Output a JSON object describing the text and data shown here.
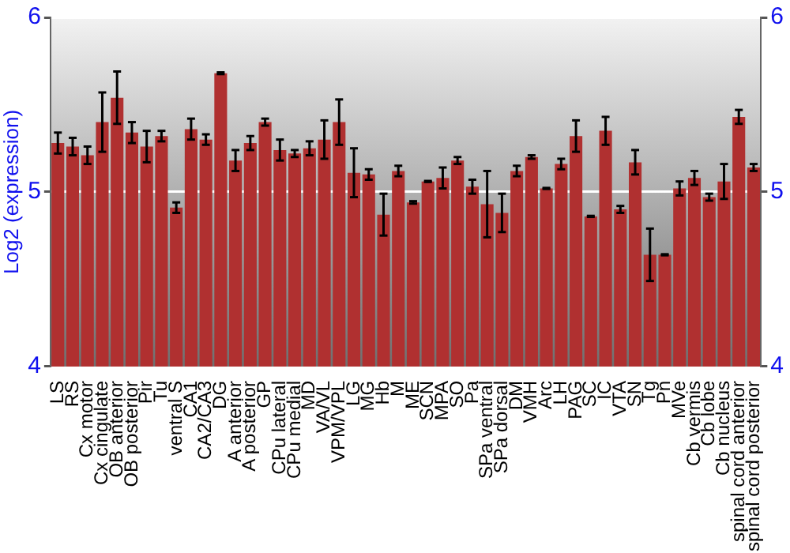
{
  "chart_data": {
    "type": "bar",
    "ylabel": "Log2 (expression)",
    "categories": [
      "LS",
      "RS",
      "Cx motor",
      "Cx cingulate",
      "OB anterior",
      "OB posterior",
      "Pir",
      "Tu",
      "ventral S",
      "CA1",
      "CA2/CA3",
      "DG",
      "A anterior",
      "A posterior",
      "GP",
      "CPu lateral",
      "CPu medial",
      "MD",
      "VA/VL",
      "VPM/VPL",
      "LG",
      "MG",
      "Hb",
      "M",
      "ME",
      "SCN",
      "MPA",
      "SO",
      "Pa",
      "SPa ventral",
      "SPa dorsal",
      "DM",
      "VMH",
      "Arc",
      "LH",
      "PAG",
      "SC",
      "IC",
      "VTA",
      "SN",
      "Tg",
      "Pn",
      "MVe",
      "Cb vermis",
      "Cb lobe",
      "Cb nucleus",
      "spinal cord anterior",
      "spinal cord posterior"
    ],
    "values": [
      5.28,
      5.26,
      5.21,
      5.4,
      5.54,
      5.34,
      5.26,
      5.32,
      4.91,
      5.36,
      5.3,
      5.68,
      5.18,
      5.28,
      5.4,
      5.24,
      5.22,
      5.25,
      5.3,
      5.4,
      5.11,
      5.1,
      4.87,
      5.12,
      4.94,
      5.06,
      5.08,
      5.18,
      5.03,
      4.93,
      4.88,
      5.12,
      5.2,
      5.02,
      5.16,
      5.32,
      4.86,
      5.35,
      4.9,
      5.17,
      4.64,
      4.64,
      5.02,
      5.08,
      4.97,
      5.06,
      5.43,
      5.14
    ],
    "errors": [
      0.06,
      0.05,
      0.05,
      0.17,
      0.15,
      0.06,
      0.09,
      0.03,
      0.03,
      0.06,
      0.03,
      0.005,
      0.06,
      0.04,
      0.02,
      0.06,
      0.02,
      0.04,
      0.11,
      0.13,
      0.14,
      0.03,
      0.12,
      0.03,
      0.007,
      0.003,
      0.06,
      0.02,
      0.04,
      0.19,
      0.11,
      0.03,
      0.01,
      0.003,
      0.03,
      0.09,
      0.003,
      0.08,
      0.02,
      0.07,
      0.15,
      0.003,
      0.04,
      0.04,
      0.02,
      0.1,
      0.04,
      0.02
    ],
    "color": "#b03030",
    "ylim": [
      4,
      6
    ],
    "yticks": [
      4,
      5,
      6
    ],
    "y2lim": [
      4,
      6
    ],
    "y2ticks": [
      4,
      5,
      6
    ],
    "grid": "y",
    "legend": false
  }
}
